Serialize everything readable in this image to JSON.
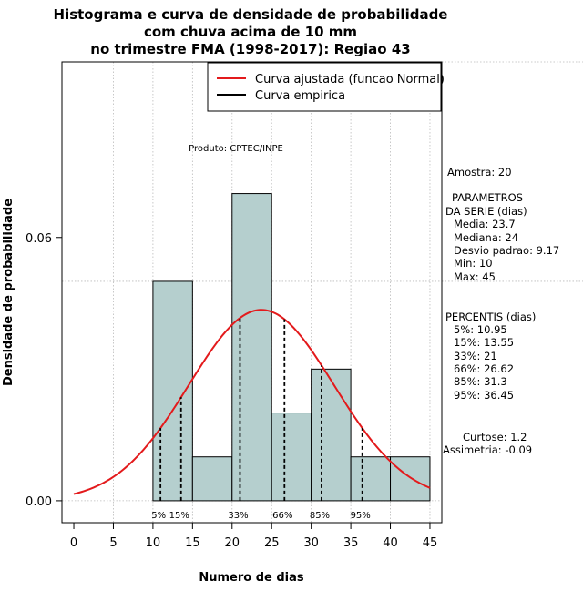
{
  "chart_data": {
    "type": "histogram",
    "title": [
      "Histograma e curva de densidade de probabilidade",
      "com chuva acima de 10 mm",
      "no trimestre FMA (1998-2017): Regiao 43"
    ],
    "xlabel": "Numero de dias",
    "ylabel": "Densidade de probabilidade",
    "xlim": [
      -1.5,
      46.5
    ],
    "ylim": [
      -0.005,
      0.1
    ],
    "x_ticks": [
      0,
      5,
      10,
      15,
      20,
      25,
      30,
      35,
      40,
      45
    ],
    "x_tick_labels": [
      "0",
      "5",
      "10",
      "15",
      "20",
      "25",
      "30",
      "35",
      "40",
      "45"
    ],
    "y_ticks": [
      0.0,
      0.06
    ],
    "y_tick_labels": [
      "0.00",
      "0.06"
    ],
    "grid": true,
    "bins": [
      {
        "from": 10,
        "to": 15,
        "density": 0.05
      },
      {
        "from": 15,
        "to": 20,
        "density": 0.01
      },
      {
        "from": 20,
        "to": 25,
        "density": 0.07
      },
      {
        "from": 25,
        "to": 30,
        "density": 0.02
      },
      {
        "from": 30,
        "to": 35,
        "density": 0.03
      },
      {
        "from": 35,
        "to": 40,
        "density": 0.01
      },
      {
        "from": 40,
        "to": 45,
        "density": 0.01
      }
    ],
    "bar_color": "#b5cfce",
    "curve": {
      "name": "Curva ajustada (funcao Normal)",
      "distribution": "normal",
      "mean": 23.7,
      "sd": 9.17,
      "x_range": [
        0,
        45
      ],
      "color": "#e31a1c"
    },
    "empirical_legend": "Curva empirica",
    "percentiles": [
      {
        "label": "5%",
        "x": 10.95
      },
      {
        "label": "15%",
        "x": 13.55
      },
      {
        "label": "33%",
        "x": 21
      },
      {
        "label": "66%",
        "x": 26.62
      },
      {
        "label": "85%",
        "x": 31.3
      },
      {
        "label": "95%",
        "x": 36.45
      }
    ],
    "legend_position": "top-right"
  },
  "annotation": "Produto: CPTEC/INPE",
  "sidebar": {
    "amostra": "Amostra: 20",
    "param_title_1": "PARAMETROS",
    "param_title_2": "DA SERIE (dias)",
    "params": [
      "Media: 23.7",
      "Mediana: 24",
      "Desvio padrao: 9.17",
      "Min: 10",
      "Max: 45"
    ],
    "percentis_title": "PERCENTIS (dias)",
    "percentis": [
      "5%: 10.95",
      "15%: 13.55",
      "33%: 21",
      "66%: 26.62",
      "85%: 31.3",
      "95%: 36.45"
    ],
    "curtose": "Curtose: 1.2",
    "assimetria": "Assimetria: -0.09"
  }
}
